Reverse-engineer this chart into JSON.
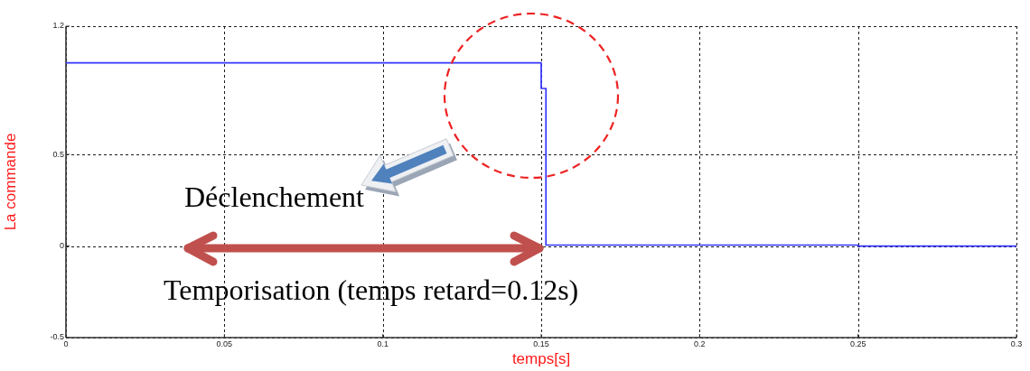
{
  "chart_data": {
    "type": "line",
    "xlabel": "temps[s]",
    "ylabel": "La commande",
    "x": [
      0,
      0.15,
      0.15,
      0.1515,
      0.1515,
      0.25,
      0.25,
      0.3
    ],
    "series": [
      {
        "color": "#3535ff",
        "values": [
          1,
          1,
          0.86,
          0.86,
          0.005,
          0.005,
          0,
          0
        ]
      }
    ],
    "xlim": [
      0,
      0.3
    ],
    "ylim": [
      -0.5,
      1.2
    ],
    "xticks": [
      0,
      0.05,
      0.1,
      0.15,
      0.2,
      0.25,
      0.3
    ],
    "yticks": [
      -0.5,
      0,
      0.5,
      1.2
    ],
    "grid": true,
    "marker": "none",
    "line_style": "solid",
    "annotations": [
      "Déclenchement",
      "Temporisation (temps retard=0.12s)"
    ]
  }
}
